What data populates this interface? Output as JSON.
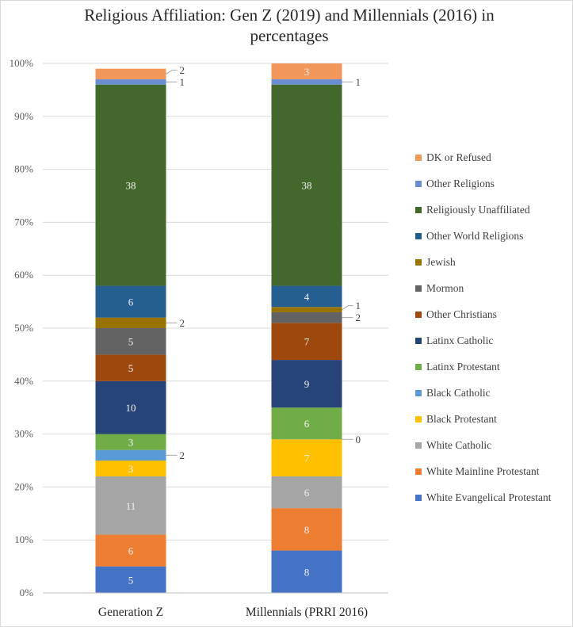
{
  "chart_data": {
    "type": "bar",
    "stacked": true,
    "title": "Religious Affiliation: Gen Z (2019) and Millennials (2016) in percentages",
    "categories": [
      "Generation Z",
      "Millennials (PRRI 2016)"
    ],
    "ylim": [
      0,
      100
    ],
    "y_ticks": [
      "0%",
      "10%",
      "20%",
      "30%",
      "40%",
      "50%",
      "60%",
      "70%",
      "80%",
      "90%",
      "100%"
    ],
    "grid": true,
    "legend_position": "right",
    "series": [
      {
        "name": "White Evangelical Protestant",
        "color": "#4472C4",
        "values": [
          5,
          8
        ]
      },
      {
        "name": "White Mainline Protestant",
        "color": "#ED7D31",
        "values": [
          6,
          8
        ]
      },
      {
        "name": "White Catholic",
        "color": "#A5A5A5",
        "values": [
          11,
          6
        ]
      },
      {
        "name": "Black Protestant",
        "color": "#FFC000",
        "values": [
          3,
          7
        ]
      },
      {
        "name": "Black Catholic",
        "color": "#5B9BD5",
        "values": [
          2,
          0
        ]
      },
      {
        "name": "Latinx Protestant",
        "color": "#70AD47",
        "values": [
          3,
          6
        ]
      },
      {
        "name": "Latinx Catholic",
        "color": "#264478",
        "values": [
          10,
          9
        ]
      },
      {
        "name": "Other Christians",
        "color": "#9E480E",
        "values": [
          5,
          7
        ]
      },
      {
        "name": "Mormon",
        "color": "#636363",
        "values": [
          5,
          2
        ]
      },
      {
        "name": "Jewish",
        "color": "#997300",
        "values": [
          2,
          1
        ]
      },
      {
        "name": "Other World Religions",
        "color": "#255E91",
        "values": [
          6,
          4
        ]
      },
      {
        "name": "Religiously Unaffiliated",
        "color": "#43682B",
        "values": [
          38,
          38
        ]
      },
      {
        "name": "Other Religions",
        "color": "#698ED0",
        "values": [
          1,
          1
        ]
      },
      {
        "name": "DK or Refused",
        "color": "#F1975A",
        "values": [
          2,
          3
        ]
      }
    ]
  }
}
